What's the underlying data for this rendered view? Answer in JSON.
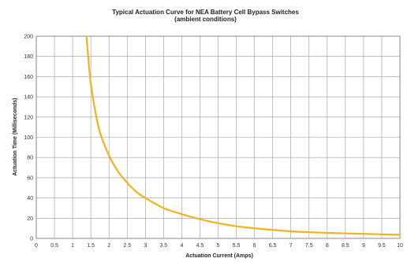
{
  "chart_data": {
    "type": "line",
    "title": "Typical Actuation Curve for NEA Battery Cell Bypass Switches",
    "subtitle": "(ambient conditions)",
    "xlabel": "Actuation Current (Amps)",
    "ylabel": "Actuation Time (Milliseconds)",
    "xlim": [
      0,
      10
    ],
    "ylim": [
      0,
      200
    ],
    "x_ticks": [
      "0",
      "0.5",
      "1",
      "1.5",
      "2",
      "2.5",
      "3",
      "3.5",
      "4",
      "4.5",
      "5",
      "5.5",
      "6",
      "6.5",
      "7",
      "7.5",
      "8",
      "8.5",
      "9",
      "9.5",
      "10"
    ],
    "y_ticks": [
      "0",
      "20",
      "40",
      "60",
      "80",
      "100",
      "120",
      "140",
      "160",
      "180",
      "200"
    ],
    "grid": true,
    "series": [
      {
        "color": "#f2b21c",
        "x": [
          1.38,
          1.45,
          1.5,
          1.6,
          1.75,
          2.0,
          2.25,
          2.5,
          2.75,
          3.0,
          3.5,
          4.0,
          4.5,
          5.0,
          5.5,
          6.0,
          7.0,
          8.0,
          9.0,
          10.0
        ],
        "y": [
          200,
          170,
          153,
          130,
          105,
          82,
          66,
          55,
          46,
          40,
          30,
          24,
          19,
          15,
          12,
          10,
          7,
          5.5,
          4.5,
          3.5
        ]
      }
    ]
  }
}
